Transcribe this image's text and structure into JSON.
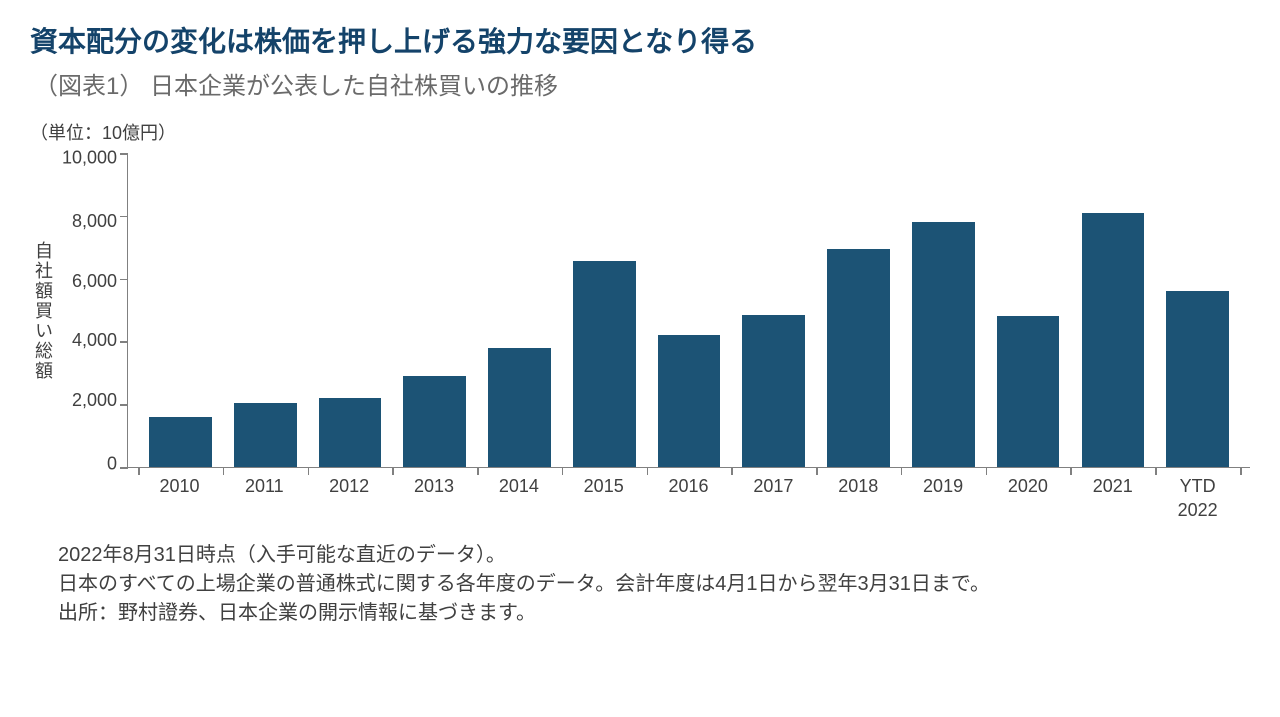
{
  "title": "資本配分の変化は株価を押し上げる強力な要因となり得る",
  "subtitle": "（図表1） 日本企業が公表した自社株買いの推移",
  "unit_label": "（単位：10億円）",
  "chart": {
    "type": "bar",
    "y_axis_title": "自社額買い総額",
    "categories": [
      "2010",
      "2011",
      "2012",
      "2013",
      "2014",
      "2015",
      "2016",
      "2017",
      "2018",
      "2019",
      "2020",
      "2021",
      "YTD\n2022"
    ],
    "values": [
      1600,
      2050,
      2200,
      2900,
      3800,
      6550,
      4200,
      4850,
      6950,
      7800,
      4800,
      8100,
      5600
    ],
    "bar_color": "#1c5375",
    "ylim": [
      0,
      10000
    ],
    "ytick_step": 2000,
    "y_ticks": [
      "10,000",
      "8,000",
      "6,000",
      "4,000",
      "2,000",
      "0"
    ],
    "axis_color": "#808080",
    "text_color": "#404040",
    "title_color": "#14436a",
    "subtitle_color": "#6a6a6a",
    "background_color": "#ffffff",
    "bar_width_ratio": 0.74,
    "tick_fontsize": 18,
    "title_fontsize": 28,
    "subtitle_fontsize": 24
  },
  "footnotes": [
    "2022年8月31日時点（入手可能な直近のデータ）。",
    "日本のすべての上場企業の普通株式に関する各年度のデータ。会計年度は4月1日から翌年3月31日まで。",
    "出所：野村證券、日本企業の開示情報に基づきます。"
  ]
}
